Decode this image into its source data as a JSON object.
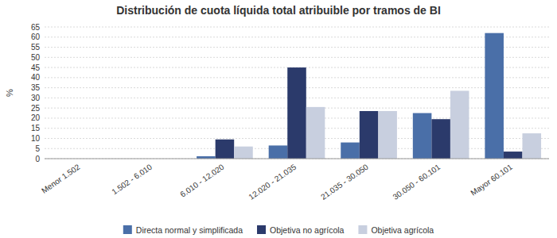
{
  "chart_data": {
    "type": "bar",
    "title": "Distribución de cuota líquida total atribuible por tramos de BI",
    "categories": [
      "Menor 1.502",
      "1.502 - 6.010",
      "6.010 - 12.020",
      "12.020 - 21.035",
      "21.035 - 30.050",
      "30.050 - 60.101",
      "Mayor 60.101"
    ],
    "series": [
      {
        "name": "Directa normal y simplificada",
        "color": "#4A6FA8",
        "values": [
          0.0,
          0.0,
          1.2,
          6.5,
          8.0,
          22.5,
          62.0
        ]
      },
      {
        "name": "Objetiva no agrícola",
        "color": "#2B3A6B",
        "values": [
          0.0,
          0.0,
          9.5,
          45.0,
          23.5,
          19.5,
          3.5
        ]
      },
      {
        "name": "Objetiva agrícola",
        "color": "#C8CFDF",
        "values": [
          0.0,
          0.0,
          6.0,
          25.5,
          23.5,
          33.5,
          12.5
        ]
      }
    ],
    "y_label": "%",
    "ylim": [
      0,
      65
    ],
    "yticks": [
      0,
      5,
      10,
      15,
      20,
      25,
      30,
      35,
      40,
      45,
      50,
      55,
      60,
      65
    ],
    "grid": true,
    "legend": "bottom"
  }
}
